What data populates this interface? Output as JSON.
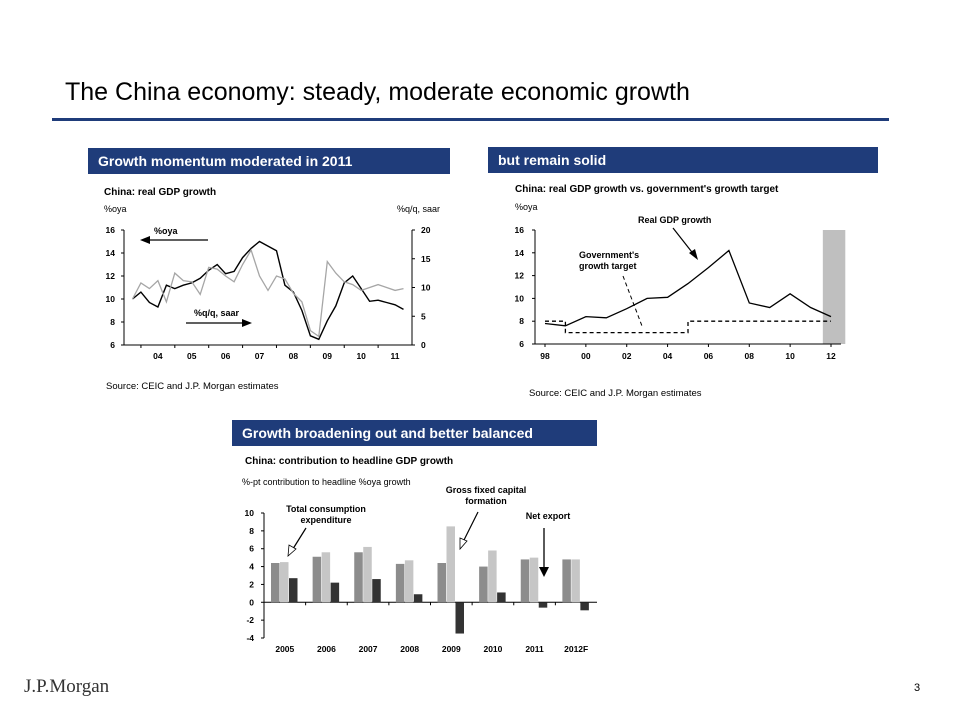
{
  "page": {
    "title": "The China economy: steady, moderate economic growth",
    "page_number": "3",
    "logo": "J.P.Morgan"
  },
  "panels": [
    {
      "header": "Growth momentum moderated in 2011",
      "source": "Source: CEIC and J.P. Morgan estimates"
    },
    {
      "header": "but remain solid",
      "source": "Source: CEIC and J.P. Morgan estimates"
    },
    {
      "header": "Growth broadening out and better balanced"
    }
  ],
  "chart_data": [
    {
      "type": "line",
      "title": "China: real GDP growth",
      "left_unit": "%oya",
      "right_unit": "%q/q, saar",
      "annotations": [
        "%oya",
        "%q/q, saar"
      ],
      "x_ticks": [
        "04",
        "05",
        "06",
        "07",
        "08",
        "09",
        "10",
        "11"
      ],
      "x_range": [
        2003.5,
        2012.0
      ],
      "ylim_left": [
        6,
        16
      ],
      "ylim_right": [
        0,
        20
      ],
      "y_ticks_left": [
        6,
        8,
        10,
        12,
        14,
        16
      ],
      "y_ticks_right": [
        0,
        5,
        10,
        15,
        20
      ],
      "x": [
        2003.75,
        2004.0,
        2004.25,
        2004.5,
        2004.75,
        2005.0,
        2005.25,
        2005.5,
        2005.75,
        2006.0,
        2006.25,
        2006.5,
        2006.75,
        2007.0,
        2007.25,
        2007.5,
        2007.75,
        2008.0,
        2008.25,
        2008.5,
        2008.75,
        2009.0,
        2009.25,
        2009.5,
        2009.75,
        2010.0,
        2010.25,
        2010.5,
        2010.75,
        2011.0,
        2011.25,
        2011.5,
        2011.75
      ],
      "series": [
        {
          "name": "%oya",
          "axis": "left",
          "color": "#000000",
          "values": [
            10.0,
            10.6,
            9.7,
            9.3,
            11.2,
            10.9,
            11.2,
            11.4,
            11.8,
            12.5,
            13.0,
            12.2,
            12.4,
            13.6,
            14.4,
            15.0,
            14.6,
            14.2,
            11.2,
            10.6,
            9.0,
            6.8,
            6.5,
            8.1,
            9.4,
            11.4,
            12.0,
            10.9,
            9.8,
            9.9,
            9.7,
            9.5,
            9.1
          ]
        },
        {
          "name": "%q/q, saar",
          "axis": "right",
          "color": "#a6a6a6",
          "values": [
            8.0,
            10.8,
            9.8,
            11.2,
            7.5,
            12.5,
            11.2,
            11.0,
            8.8,
            13.5,
            13.2,
            12.0,
            11.0,
            14.0,
            16.5,
            12.0,
            9.5,
            12.0,
            11.5,
            9.0,
            7.5,
            2.5,
            1.5,
            14.5,
            12.5,
            11.0,
            10.5,
            9.5,
            10.0,
            10.5,
            10.0,
            9.5,
            9.8
          ]
        }
      ]
    },
    {
      "type": "line",
      "title": "China: real GDP growth vs. government's growth target",
      "ylabel": "%oya",
      "annotations": [
        "Real GDP growth",
        "Government's growth target"
      ],
      "x_ticks": [
        "98",
        "00",
        "02",
        "04",
        "06",
        "08",
        "10",
        "12"
      ],
      "x_range": [
        1998,
        2012
      ],
      "ylim": [
        6,
        16
      ],
      "y_ticks": [
        6,
        8,
        10,
        12,
        14,
        16
      ],
      "shaded_region": [
        2011.6,
        2012.7
      ],
      "series": [
        {
          "name": "Real GDP growth",
          "style": "solid",
          "color": "#000000",
          "x": [
            1998,
            1999,
            2000,
            2001,
            2002,
            2003,
            2004,
            2005,
            2006,
            2007,
            2008,
            2009,
            2010,
            2011,
            2012
          ],
          "values": [
            7.8,
            7.6,
            8.4,
            8.3,
            9.1,
            10.0,
            10.1,
            11.3,
            12.7,
            14.2,
            9.6,
            9.2,
            10.4,
            9.2,
            8.4
          ]
        },
        {
          "name": "Government's growth target",
          "style": "dashed",
          "color": "#000000",
          "x": [
            1998,
            1999,
            2000,
            2001,
            2002,
            2003,
            2004,
            2005,
            2006,
            2007,
            2008,
            2009,
            2010,
            2011,
            2012
          ],
          "values": [
            8,
            7,
            7,
            7,
            7,
            7,
            7,
            8,
            8,
            8,
            8,
            8,
            8,
            8,
            8
          ]
        }
      ]
    },
    {
      "type": "bar",
      "title": "China: contribution to headline GDP growth",
      "ylabel": "%-pt contribution to headline %oya growth",
      "categories": [
        "2005",
        "2006",
        "2007",
        "2008",
        "2009",
        "2010",
        "2011",
        "2012F"
      ],
      "ylim": [
        -4,
        10
      ],
      "y_ticks": [
        -4,
        -2,
        0,
        2,
        4,
        6,
        8,
        10
      ],
      "annotations": [
        "Total consumption expenditure",
        "Gross fixed capital formation",
        "Net export"
      ],
      "series": [
        {
          "name": "Total consumption expenditure",
          "color": "#8c8c8c",
          "values": [
            4.4,
            5.1,
            5.6,
            4.3,
            4.4,
            4.0,
            4.8,
            4.8
          ]
        },
        {
          "name": "Gross fixed capital formation",
          "color": "#c6c6c6",
          "values": [
            4.5,
            5.6,
            6.2,
            4.7,
            8.5,
            5.8,
            5.0,
            4.8
          ]
        },
        {
          "name": "Net export",
          "color": "#333333",
          "values": [
            2.7,
            2.2,
            2.6,
            0.9,
            -3.5,
            1.1,
            -0.6,
            -0.9
          ]
        }
      ]
    }
  ]
}
